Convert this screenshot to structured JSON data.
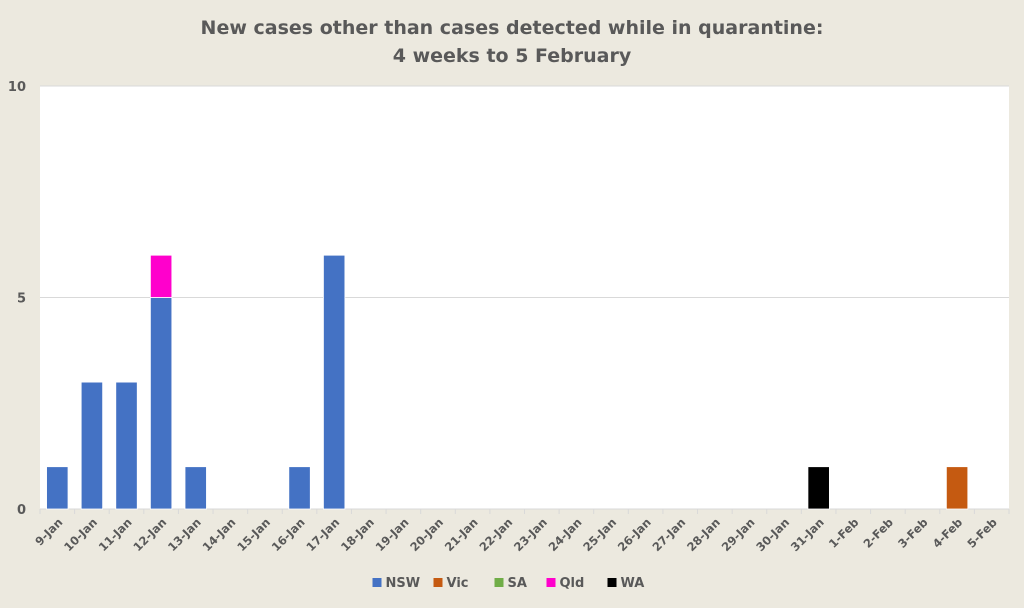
{
  "chart_data": {
    "type": "bar",
    "stacked": true,
    "title_lines": [
      "New cases other than cases detected while in quarantine:",
      "4 weeks to 5 February"
    ],
    "xlabel": "",
    "ylabel": "",
    "ylim": [
      0,
      10
    ],
    "yticks": [
      "0",
      "5",
      "10"
    ],
    "grid": true,
    "legend_position": "bottom",
    "categories": [
      "9-Jan",
      "10-Jan",
      "11-Jan",
      "12-Jan",
      "13-Jan",
      "14-Jan",
      "15-Jan",
      "16-Jan",
      "17-Jan",
      "18-Jan",
      "19-Jan",
      "20-Jan",
      "21-Jan",
      "22-Jan",
      "23-Jan",
      "24-Jan",
      "25-Jan",
      "26-Jan",
      "27-Jan",
      "28-Jan",
      "29-Jan",
      "30-Jan",
      "31-Jan",
      "1-Feb",
      "2-Feb",
      "3-Feb",
      "4-Feb",
      "5-Feb"
    ],
    "series": [
      {
        "name": "NSW",
        "color": "#4472C4",
        "values": [
          1,
          3,
          3,
          5,
          1,
          0,
          0,
          1,
          6,
          0,
          0,
          0,
          0,
          0,
          0,
          0,
          0,
          0,
          0,
          0,
          0,
          0,
          0,
          0,
          0,
          0,
          0,
          0
        ]
      },
      {
        "name": "Vic",
        "color": "#C55A11",
        "values": [
          0,
          0,
          0,
          0,
          0,
          0,
          0,
          0,
          0,
          0,
          0,
          0,
          0,
          0,
          0,
          0,
          0,
          0,
          0,
          0,
          0,
          0,
          0,
          0,
          0,
          0,
          1,
          0
        ]
      },
      {
        "name": "SA",
        "color": "#70AD47",
        "values": [
          0,
          0,
          0,
          0,
          0,
          0,
          0,
          0,
          0,
          0,
          0,
          0,
          0,
          0,
          0,
          0,
          0,
          0,
          0,
          0,
          0,
          0,
          0,
          0,
          0,
          0,
          0,
          0
        ]
      },
      {
        "name": "Qld",
        "color": "#FF00CC",
        "values": [
          0,
          0,
          0,
          1,
          0,
          0,
          0,
          0,
          0,
          0,
          0,
          0,
          0,
          0,
          0,
          0,
          0,
          0,
          0,
          0,
          0,
          0,
          0,
          0,
          0,
          0,
          0,
          0
        ]
      },
      {
        "name": "WA",
        "color": "#000000",
        "values": [
          0,
          0,
          0,
          0,
          0,
          0,
          0,
          0,
          0,
          0,
          0,
          0,
          0,
          0,
          0,
          0,
          0,
          0,
          0,
          0,
          0,
          0,
          1,
          0,
          0,
          0,
          0,
          0
        ]
      }
    ]
  }
}
